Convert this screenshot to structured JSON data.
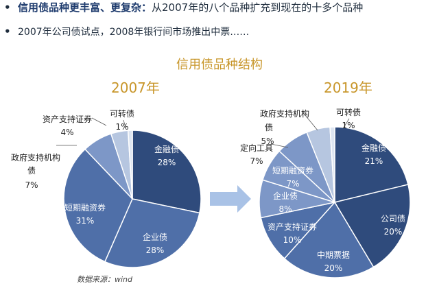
{
  "bullets": {
    "line1_bold": "信用债品种更丰富、更复杂：",
    "line1_rest": "从2007年的八个品种扩充到现在的十多个品种",
    "line2": "2007年公司债试点，2008年银行间市场推出中票……"
  },
  "chart_title": "信用债品种结构",
  "source_note": "数据来源：wind",
  "colors": {
    "dark_blue": "#2f4b7c",
    "mid_blue": "#4f6fa8",
    "light_blue": "#7d97c7",
    "pale_blue": "#b6c6e0",
    "very_pale": "#dde5f1",
    "accent_gold": "#c8962a",
    "arrow": "#a9c2e6"
  },
  "chart_data": [
    {
      "type": "pie",
      "title": "2007年",
      "slices": [
        {
          "label": "金融债",
          "value": 28,
          "display": "28%"
        },
        {
          "label": "企业债",
          "value": 28,
          "display": "28%"
        },
        {
          "label": "短期融资券",
          "value": 31,
          "display": "31%"
        },
        {
          "label": "政府支持机构债",
          "value": 7,
          "display": "7%"
        },
        {
          "label": "资产支持证券",
          "value": 4,
          "display": "4%"
        },
        {
          "label": "可转债",
          "value": 1,
          "display": "1%"
        }
      ]
    },
    {
      "type": "pie",
      "title": "2019年",
      "slices": [
        {
          "label": "金融债",
          "value": 21,
          "display": "21%"
        },
        {
          "label": "公司债",
          "value": 20,
          "display": "20%"
        },
        {
          "label": "中期票据",
          "value": 20,
          "display": "20%"
        },
        {
          "label": "资产支持证券",
          "value": 10,
          "display": "10%"
        },
        {
          "label": "企业债",
          "value": 8,
          "display": "8%"
        },
        {
          "label": "短期融资券",
          "value": 7,
          "display": "7%"
        },
        {
          "label": "定向工具",
          "value": 7,
          "display": "7%"
        },
        {
          "label": "政府支持机构债",
          "value": 5,
          "display": "5%"
        },
        {
          "label": "可转债",
          "value": 1,
          "display": "1%"
        }
      ]
    }
  ]
}
